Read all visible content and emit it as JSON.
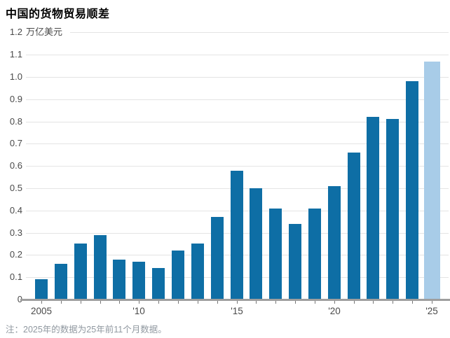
{
  "chart_data": {
    "type": "bar",
    "title": "中国的货物贸易顺差",
    "unit": "万亿美元",
    "note": "注：2025年的数据为25年前11个月数据。",
    "categories": [
      2005,
      2006,
      2007,
      2008,
      2009,
      2010,
      2011,
      2012,
      2013,
      2014,
      2015,
      2016,
      2017,
      2018,
      2019,
      2020,
      2021,
      2022,
      2023,
      2024,
      2025
    ],
    "values": [
      0.09,
      0.16,
      0.25,
      0.29,
      0.18,
      0.17,
      0.14,
      0.22,
      0.25,
      0.37,
      0.58,
      0.5,
      0.41,
      0.34,
      0.41,
      0.51,
      0.66,
      0.82,
      0.81,
      0.98,
      1.07
    ],
    "highlight_category": 2025,
    "ylim": [
      0,
      1.2
    ],
    "grid": "horizontal",
    "legend": "none",
    "yticks": [
      {
        "v": 1.2,
        "label": "1.2"
      },
      {
        "v": 1.1,
        "label": "1.1"
      },
      {
        "v": 1.0,
        "label": "1.0"
      },
      {
        "v": 0.9,
        "label": "0.9"
      },
      {
        "v": 0.8,
        "label": "0.8"
      },
      {
        "v": 0.7,
        "label": "0.7"
      },
      {
        "v": 0.6,
        "label": "0.6"
      },
      {
        "v": 0.5,
        "label": "0.5"
      },
      {
        "v": 0.4,
        "label": "0.4"
      },
      {
        "v": 0.3,
        "label": "0.3"
      },
      {
        "v": 0.2,
        "label": "0.2"
      },
      {
        "v": 0.1,
        "label": "0.1"
      },
      {
        "v": 0.0,
        "label": "0"
      }
    ],
    "xticks": [
      {
        "year": 2005,
        "label": "2005"
      },
      {
        "year": 2010,
        "label": "'10"
      },
      {
        "year": 2015,
        "label": "'15"
      },
      {
        "year": 2020,
        "label": "'20"
      },
      {
        "year": 2025,
        "label": "'25"
      }
    ],
    "colors": {
      "bar": "#0e6ea5",
      "highlight_bar": "#a8cce8",
      "gridline": "#e4e4e4",
      "axis_line": "#9e9e9e",
      "tick_mark": "#777777",
      "title": "#000000",
      "axis_label": "#4a4a4a",
      "note": "#9098a0"
    }
  }
}
